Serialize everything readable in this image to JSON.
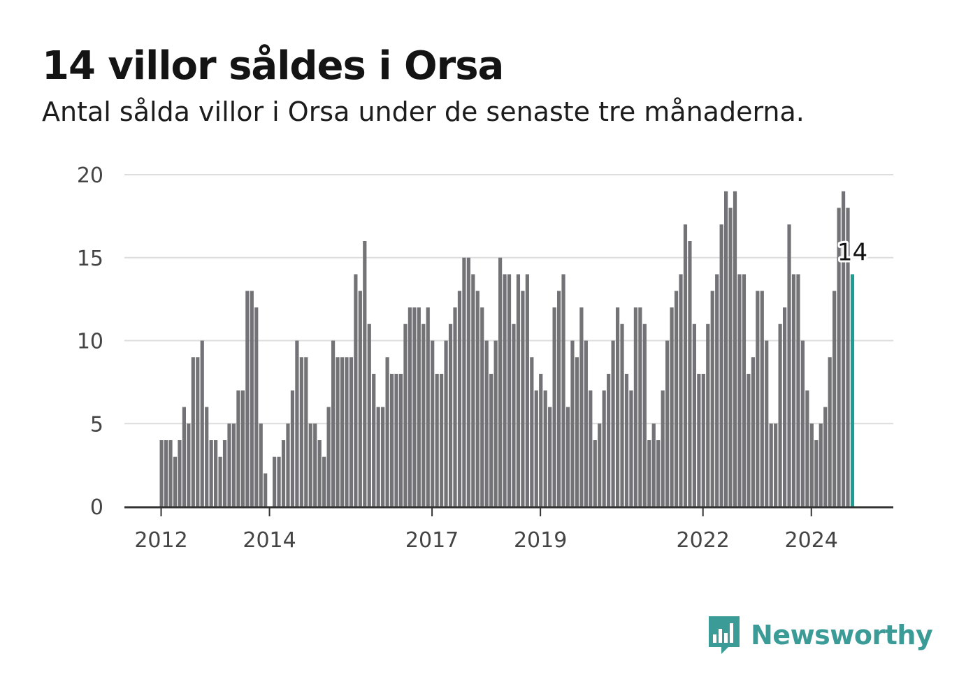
{
  "header": {
    "title": "14 villor såldes i Orsa",
    "subtitle": "Antal sålda villor i Orsa under de senaste tre månaderna."
  },
  "branding": {
    "name": "Newsworthy",
    "icon": "bar-chart-speech-bubble-icon",
    "color": "#3b9b96"
  },
  "colors": {
    "bar": "#737276",
    "highlight": "#1e9e91",
    "grid": "#dddddd",
    "axis": "#333333"
  },
  "chart_data": {
    "type": "bar",
    "title": "14 villor såldes i Orsa",
    "subtitle": "Antal sålda villor i Orsa under de senaste tre månaderna.",
    "xlabel": "",
    "ylabel": "",
    "ylim": [
      0,
      20
    ],
    "yticks": [
      0,
      5,
      10,
      15,
      20
    ],
    "xticks": [
      "2012",
      "2014",
      "2017",
      "2019",
      "2022",
      "2024"
    ],
    "grid": true,
    "legend": "none",
    "x_start": "2012-01",
    "x_end": "2024-10",
    "x_frequency": "monthly",
    "highlight_last": true,
    "annotation": "14",
    "values": [
      4,
      4,
      4,
      3,
      4,
      6,
      5,
      9,
      9,
      10,
      6,
      4,
      4,
      3,
      4,
      5,
      5,
      7,
      7,
      13,
      13,
      12,
      5,
      2,
      0,
      3,
      3,
      4,
      5,
      7,
      10,
      9,
      9,
      5,
      5,
      4,
      3,
      6,
      10,
      9,
      9,
      9,
      9,
      14,
      13,
      16,
      11,
      8,
      6,
      6,
      9,
      8,
      8,
      8,
      11,
      12,
      12,
      12,
      11,
      12,
      10,
      8,
      8,
      10,
      11,
      12,
      13,
      15,
      15,
      14,
      13,
      12,
      10,
      8,
      10,
      15,
      14,
      14,
      11,
      14,
      13,
      14,
      9,
      7,
      8,
      7,
      6,
      12,
      13,
      14,
      6,
      10,
      9,
      12,
      10,
      7,
      4,
      5,
      7,
      8,
      10,
      12,
      11,
      8,
      7,
      12,
      12,
      11,
      4,
      5,
      4,
      7,
      10,
      12,
      13,
      14,
      17,
      16,
      11,
      8,
      8,
      11,
      13,
      14,
      17,
      19,
      18,
      19,
      14,
      14,
      8,
      9,
      13,
      13,
      10,
      5,
      5,
      11,
      12,
      17,
      14,
      14,
      10,
      7,
      5,
      4,
      5,
      6,
      9,
      13,
      18,
      19,
      18,
      14
    ]
  }
}
